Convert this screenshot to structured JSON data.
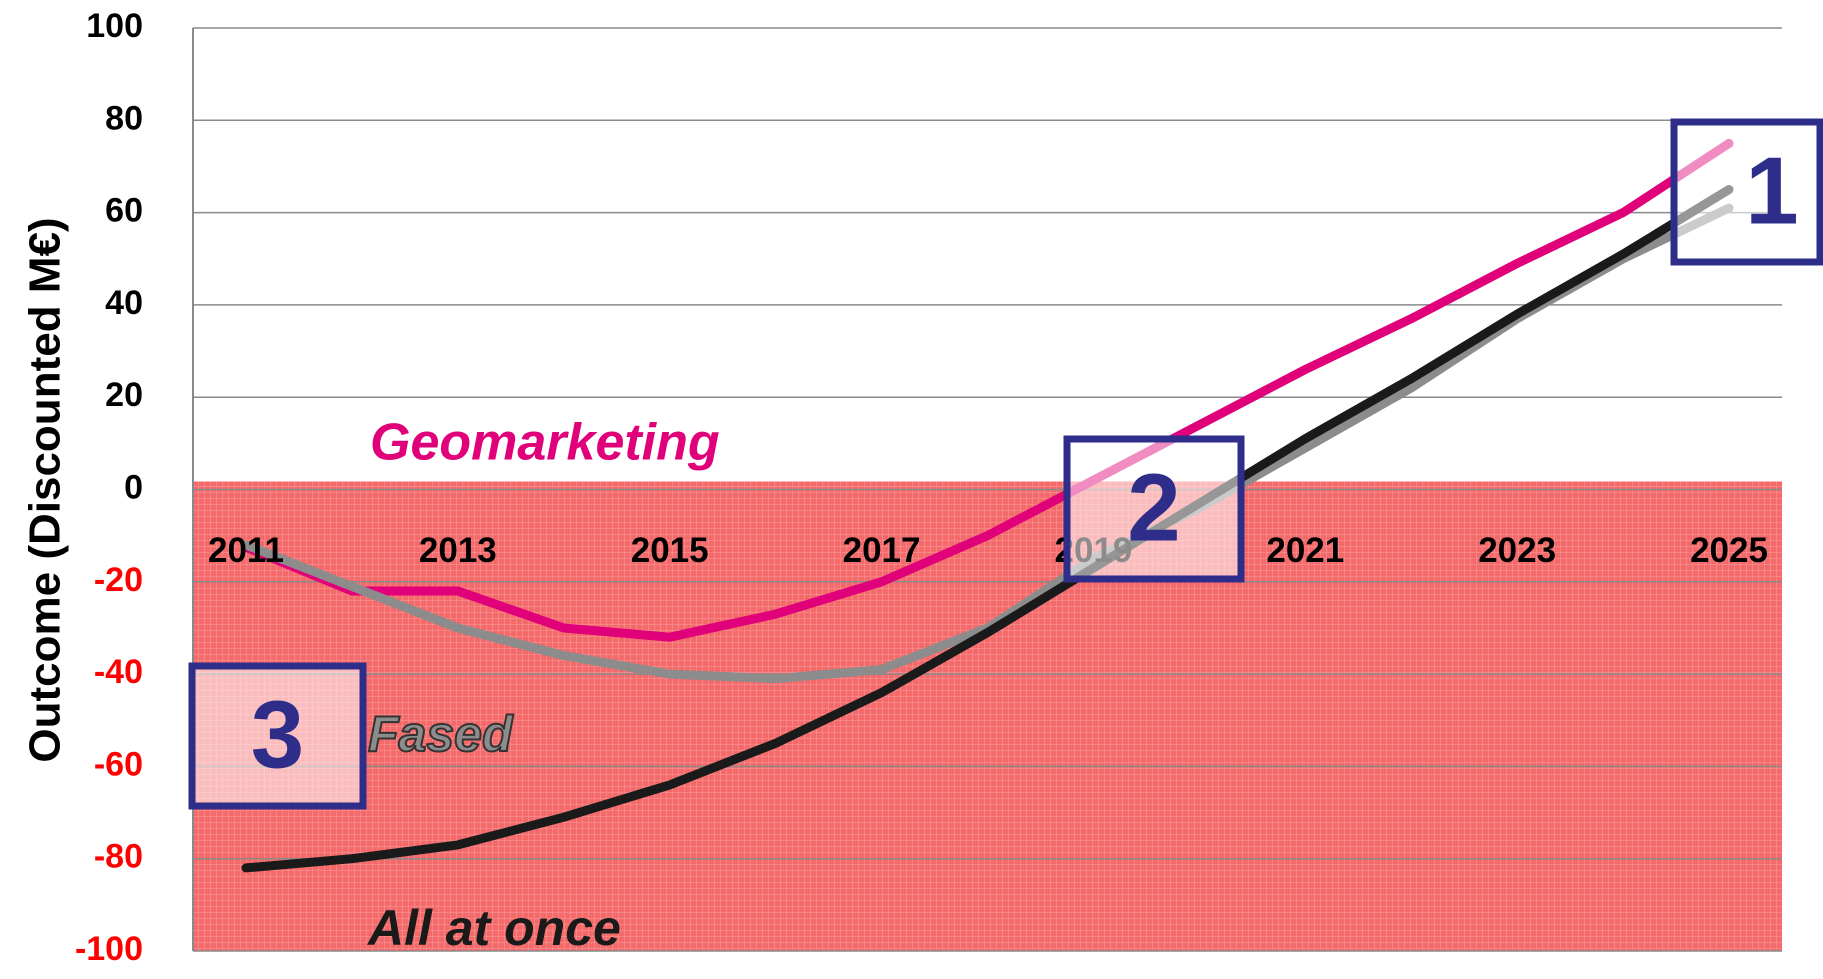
{
  "chart_data": {
    "type": "line",
    "y_label": "Outcome (Discounted M€)",
    "x": [
      2011,
      2012,
      2013,
      2014,
      2015,
      2016,
      2017,
      2018,
      2019,
      2020,
      2021,
      2022,
      2023,
      2024,
      2025
    ],
    "xlim": [
      2010.5,
      2025.5
    ],
    "xticks": [
      2011,
      2013,
      2015,
      2017,
      2019,
      2021,
      2023,
      2025
    ],
    "ylim": [
      -100,
      100
    ],
    "yticks": [
      -100,
      -80,
      -60,
      -40,
      -20,
      0,
      20,
      40,
      60,
      80,
      100
    ],
    "grid": true,
    "negative_tick_color": "#ff0000",
    "shade": {
      "from": -100,
      "to": 0,
      "color": "#f46a6a"
    },
    "series": [
      {
        "name": "Geomarketing",
        "color": "#e0007a",
        "values": [
          -12.5,
          -22,
          -22,
          -30,
          -32,
          -27,
          -20,
          -10,
          2,
          14,
          26,
          37,
          49,
          60,
          75
        ]
      },
      {
        "name": "Fased",
        "color": "#8c8c8c",
        "values": [
          -12,
          -21,
          -30,
          -36,
          -40,
          -41,
          -39,
          -30,
          -15,
          -4,
          9,
          22,
          37,
          50,
          61
        ]
      },
      {
        "name": "All at once",
        "color": "#1a1a1a",
        "values": [
          -82,
          -80,
          -77,
          -71,
          -64,
          -55,
          -44,
          -31,
          -17,
          -3,
          11,
          24,
          38,
          51,
          65
        ]
      }
    ],
    "annotations": [
      "1",
      "2",
      "3"
    ]
  }
}
